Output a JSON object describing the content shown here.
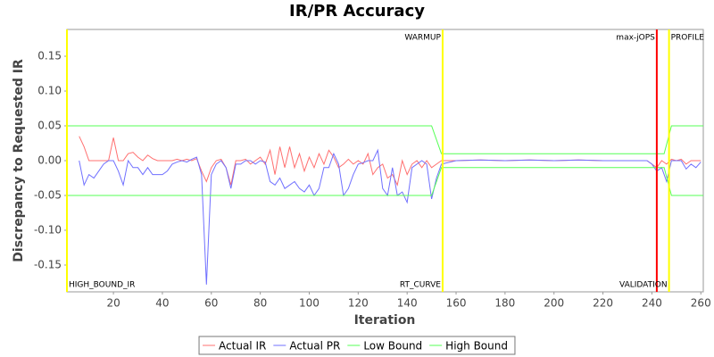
{
  "chart_data": {
    "type": "line",
    "title": "IR/PR Accuracy",
    "x_label": "Iteration",
    "y_label": "Discrepancy to Requested IR",
    "xlim": [
      1,
      261
    ],
    "ylim": [
      -0.1885,
      0.1885
    ],
    "xticks": [
      20,
      40,
      60,
      80,
      100,
      120,
      140,
      160,
      180,
      200,
      220,
      240,
      260
    ],
    "yticks": [
      -0.15,
      {
        "value": -0.1,
        "label": "-0.10"
      },
      -0.05,
      {
        "value": 0,
        "label": "0.00"
      },
      0.05,
      {
        "value": 0.1,
        "label": "0.10"
      },
      0.15
    ],
    "grid": false,
    "legend": "bottom",
    "x": [
      6,
      8,
      10,
      12,
      14,
      16,
      18,
      20,
      22,
      24,
      26,
      28,
      30,
      32,
      34,
      36,
      38,
      40,
      42,
      44,
      46,
      48,
      50,
      52,
      54,
      56,
      58,
      60,
      62,
      64,
      66,
      68,
      70,
      72,
      74,
      76,
      78,
      80,
      82,
      84,
      86,
      88,
      90,
      92,
      94,
      96,
      98,
      100,
      102,
      104,
      106,
      108,
      110,
      112,
      114,
      116,
      118,
      120,
      122,
      124,
      126,
      128,
      130,
      132,
      134,
      136,
      138,
      140,
      142,
      144,
      146,
      148,
      150,
      152,
      154,
      160,
      170,
      180,
      190,
      200,
      210,
      220,
      230,
      238,
      240,
      242,
      244,
      246,
      248,
      250,
      252,
      254,
      256,
      258,
      260
    ],
    "series": [
      {
        "name": "Actual IR",
        "color": "#ff7070",
        "values": [
          0.035,
          0.02,
          0,
          0,
          0,
          0,
          0,
          0.033,
          0,
          0,
          0.01,
          0.012,
          0.005,
          0,
          0.008,
          0.003,
          0,
          0,
          0,
          0,
          0.002,
          0,
          0.002,
          0,
          0.003,
          -0.015,
          -0.03,
          -0.01,
          0,
          0.002,
          -0.01,
          -0.035,
          0,
          0,
          0.002,
          -0.005,
          0,
          0.005,
          -0.005,
          0.015,
          -0.02,
          0.02,
          -0.01,
          0.02,
          -0.01,
          0.01,
          -0.015,
          0.005,
          -0.01,
          0.01,
          -0.005,
          0.015,
          0.005,
          -0.01,
          -0.005,
          0.002,
          -0.005,
          0,
          -0.005,
          0.01,
          -0.02,
          -0.01,
          -0.005,
          -0.025,
          -0.02,
          -0.035,
          0,
          -0.02,
          -0.005,
          0,
          -0.01,
          0,
          -0.01,
          -0.005,
          0,
          0,
          0.001,
          0,
          0.001,
          0,
          0.001,
          0,
          0,
          0,
          -0.005,
          -0.01,
          0,
          -0.005,
          0.002,
          0,
          0.002,
          -0.005,
          0,
          0,
          0
        ]
      },
      {
        "name": "Actual PR",
        "color": "#7070ff",
        "values": [
          0,
          -0.035,
          -0.02,
          -0.025,
          -0.015,
          -0.005,
          0,
          0,
          -0.015,
          -0.035,
          0,
          -0.01,
          -0.01,
          -0.02,
          -0.01,
          -0.02,
          -0.02,
          -0.02,
          -0.015,
          -0.005,
          -0.002,
          0,
          -0.002,
          0.002,
          0.005,
          -0.02,
          -0.178,
          -0.02,
          -0.005,
          0,
          -0.01,
          -0.04,
          -0.005,
          -0.005,
          0,
          0,
          -0.005,
          0,
          -0.002,
          -0.03,
          -0.035,
          -0.025,
          -0.04,
          -0.035,
          -0.03,
          -0.04,
          -0.045,
          -0.035,
          -0.05,
          -0.04,
          -0.01,
          -0.01,
          0.01,
          -0.005,
          -0.05,
          -0.04,
          -0.02,
          -0.005,
          -0.003,
          0,
          0,
          0.015,
          -0.04,
          -0.05,
          -0.01,
          -0.05,
          -0.045,
          -0.06,
          -0.01,
          -0.005,
          0,
          -0.005,
          -0.055,
          -0.025,
          -0.005,
          0,
          0.001,
          0,
          0.001,
          0,
          0.001,
          0,
          0,
          0,
          -0.005,
          -0.015,
          -0.01,
          -0.03,
          0,
          0,
          0,
          -0.012,
          -0.005,
          -0.01,
          -0.002
        ]
      },
      {
        "name": "Low Bound",
        "color": "#55ff55",
        "x": [
          1,
          150,
          154,
          245,
          248,
          261
        ],
        "values": [
          -0.05,
          -0.05,
          -0.01,
          -0.01,
          -0.05,
          -0.05
        ]
      },
      {
        "name": "High Bound",
        "color": "#55ff55",
        "x": [
          1,
          150,
          154,
          245,
          248,
          261
        ],
        "values": [
          0.05,
          0.05,
          0.01,
          0.01,
          0.05,
          0.05
        ]
      }
    ],
    "markers": [
      {
        "x": 1,
        "color": "#ffff00",
        "labels": [
          {
            "text": "HIGH_BOUND_IR",
            "position": "bottom",
            "align": "start"
          }
        ]
      },
      {
        "x": 154.5,
        "color": "#ffff00",
        "labels": [
          {
            "text": "WARMUP",
            "position": "top",
            "align": "end"
          },
          {
            "text": "RT_CURVE",
            "position": "bottom",
            "align": "end"
          }
        ]
      },
      {
        "x": 242,
        "color": "#ff0000",
        "labels": [
          {
            "text": "max-jOPS",
            "position": "top",
            "align": "end"
          }
        ]
      },
      {
        "x": 247,
        "color": "#ffff00",
        "labels": [
          {
            "text": "PROFILE",
            "position": "top",
            "align": "start"
          },
          {
            "text": "VALIDATION",
            "position": "bottom",
            "align": "end"
          }
        ]
      }
    ]
  }
}
